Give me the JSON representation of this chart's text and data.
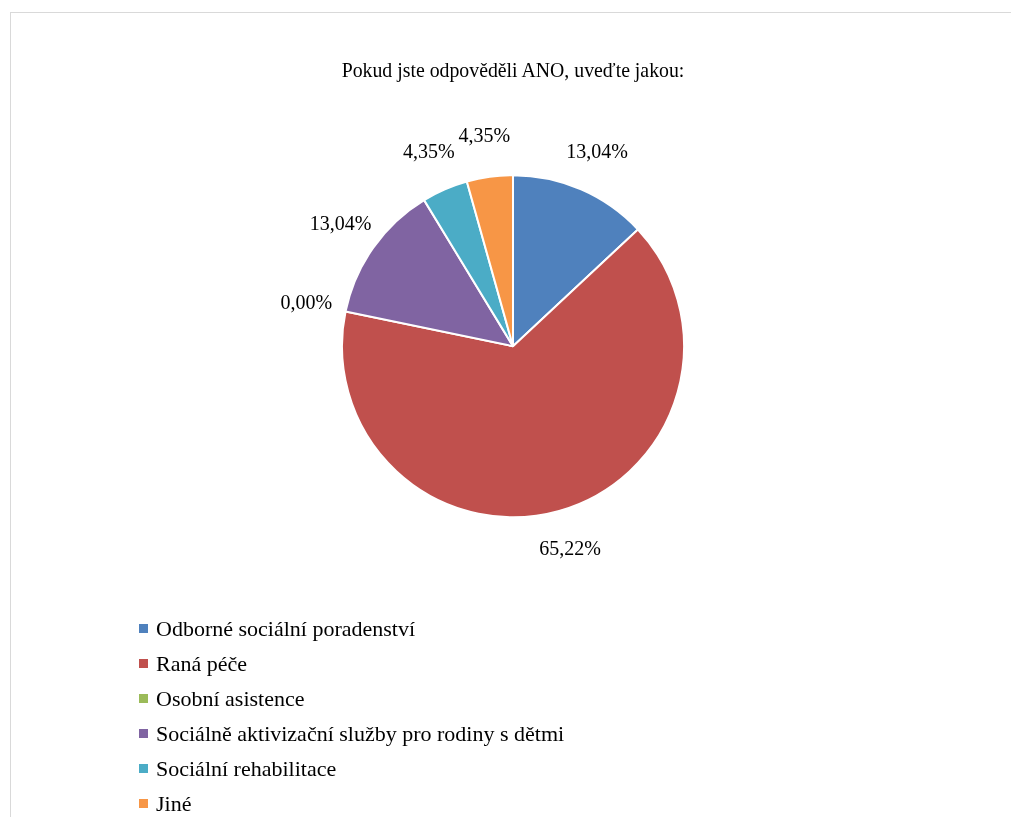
{
  "chart_data": {
    "type": "pie",
    "title": "Pokud jste odpověděli ANO, uveďte jakou:",
    "categories": [
      "Odborné sociální poradenství",
      "Raná péče",
      "Osobní asistence",
      "Sociálně aktivizační služby pro rodiny s dětmi",
      "Sociální rehabilitace",
      "Jiné"
    ],
    "values": [
      13.04,
      65.22,
      0.0,
      13.04,
      4.35,
      4.35
    ],
    "colors": [
      "#4f81bd",
      "#c0504d",
      "#9bbb59",
      "#8064a2",
      "#4bacc6",
      "#f79646"
    ],
    "value_labels": [
      "13,04%",
      "65,22%",
      "0,00%",
      "13,04%",
      "4,35%",
      "4,35%"
    ],
    "legend": "bottom"
  }
}
